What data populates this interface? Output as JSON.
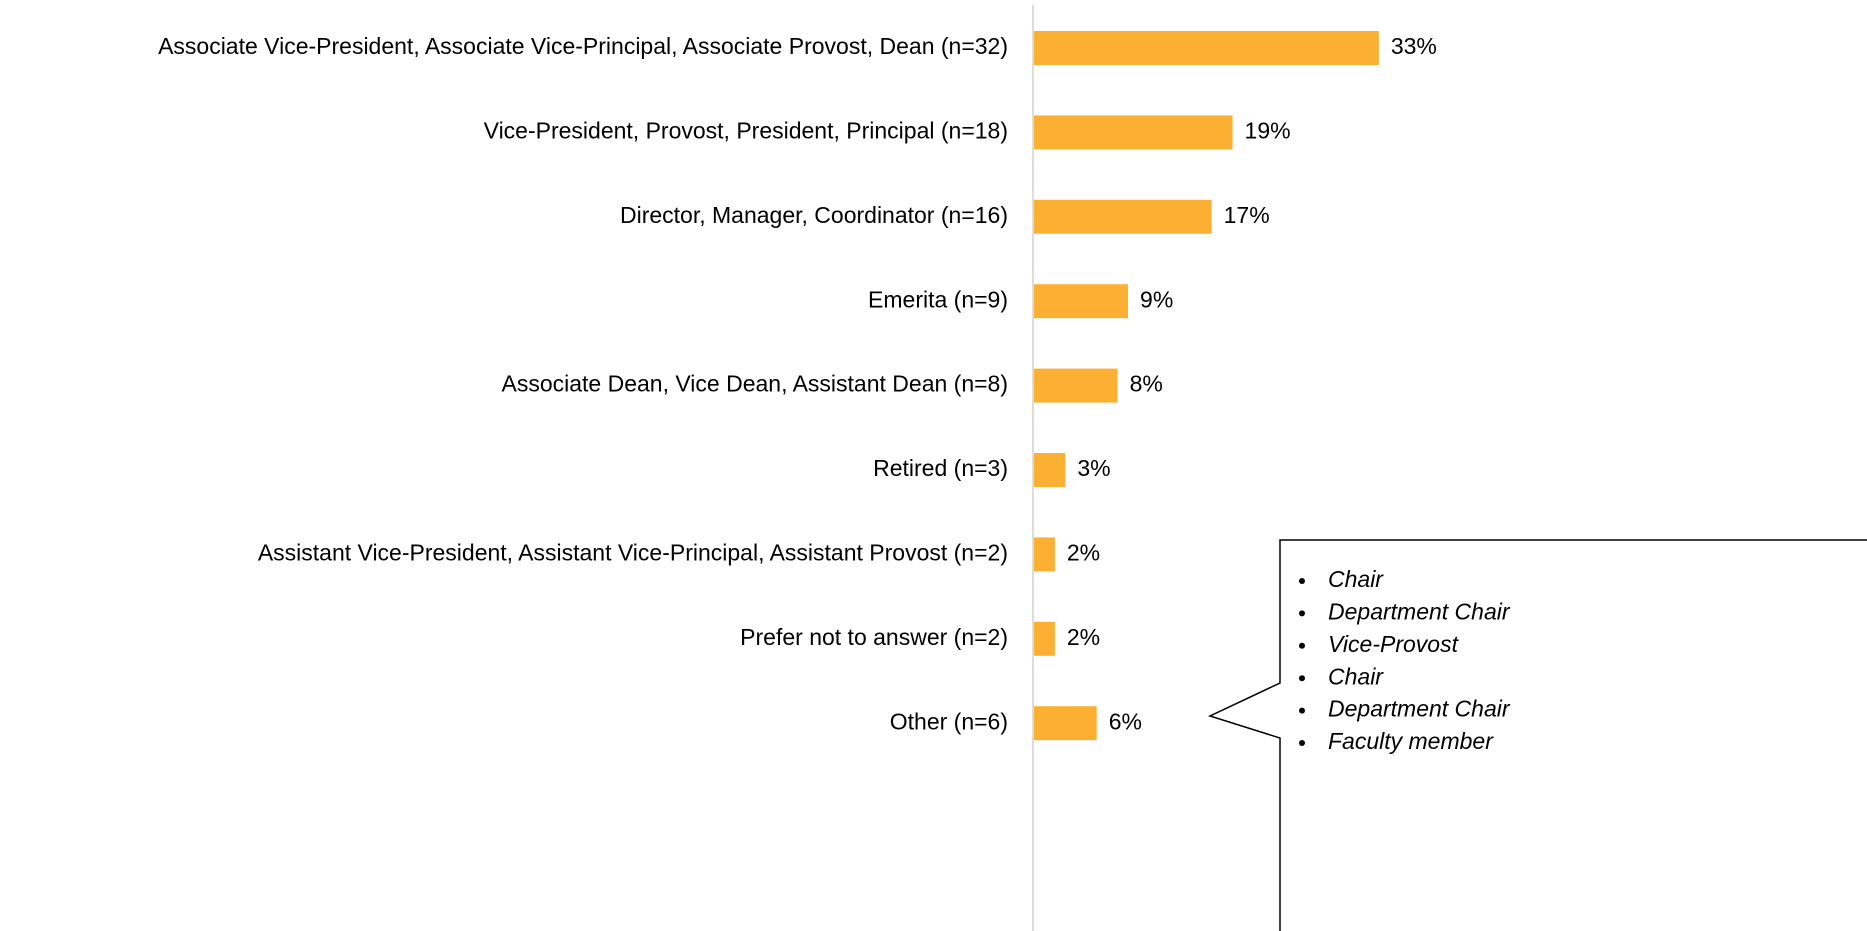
{
  "chart_data": {
    "type": "bar",
    "orientation": "horizontal",
    "categories": [
      "Associate Vice-President, Associate Vice-Principal, Associate Provost, Dean (n=32)",
      "Vice-President, Provost, President, Principal (n=18)",
      "Director, Manager, Coordinator (n=16)",
      "Emerita (n=9)",
      "Associate Dean, Vice Dean, Assistant Dean (n=8)",
      "Retired (n=3)",
      "Assistant Vice-President, Assistant Vice-Principal, Assistant Provost (n=2)",
      "Prefer not to answer (n=2)",
      "Other (n=6)"
    ],
    "values": [
      33,
      19,
      17,
      9,
      8,
      3,
      2,
      2,
      6
    ],
    "value_labels": [
      "33%",
      "19%",
      "17%",
      "9%",
      "8%",
      "3%",
      "2%",
      "2%",
      "6%"
    ],
    "color": "#fbb034",
    "callout": [
      "Chair",
      "Department Chair",
      "Vice-Provost",
      "Chair",
      "Department Chair",
      "Faculty member"
    ]
  }
}
